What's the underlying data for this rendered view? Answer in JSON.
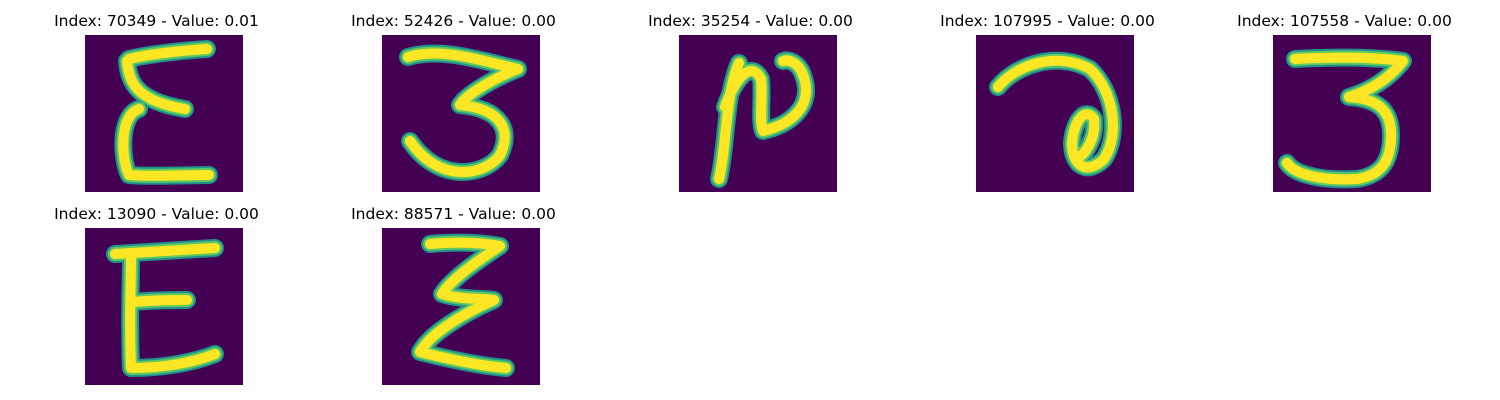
{
  "colors": {
    "background": "#440154",
    "stroke_edge": "#21918c",
    "stroke_mid": "#5ec962",
    "stroke_core": "#fde725"
  },
  "panels": [
    {
      "title": "Index: 70349 - Value: 0.01",
      "glyph": "epsilon-upright"
    },
    {
      "title": "Index: 52426 - Value: 0.00",
      "glyph": "three-wide"
    },
    {
      "title": "Index: 35254 - Value: 0.00",
      "glyph": "script-n"
    },
    {
      "title": "Index: 107995 - Value: 0.00",
      "glyph": "script-a"
    },
    {
      "title": "Index: 107558 - Value: 0.00",
      "glyph": "three-flat"
    },
    {
      "title": "Index: 13090 - Value: 0.00",
      "glyph": "E-upright"
    },
    {
      "title": "Index: 88571 - Value: 0.00",
      "glyph": "epsilon-slant"
    }
  ]
}
